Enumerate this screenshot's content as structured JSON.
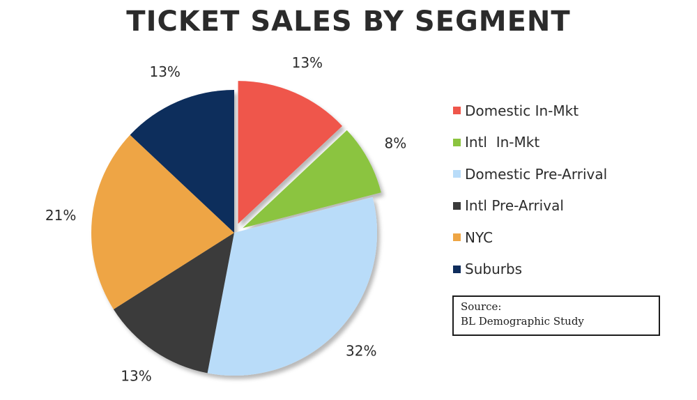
{
  "chart_data": {
    "type": "pie",
    "title": "TICKET SALES BY SEGMENT",
    "slices": [
      {
        "label": "Domestic In-Mkt",
        "value": 13,
        "display": "13%",
        "color": "#ef564b",
        "exploded": true
      },
      {
        "label": "Intl  In-Mkt",
        "value": 8,
        "display": "8%",
        "color": "#8bc43f",
        "exploded": true
      },
      {
        "label": "Domestic Pre-Arrival",
        "value": 32,
        "display": "32%",
        "color": "#b9dcf9",
        "exploded": false
      },
      {
        "label": "Intl Pre-Arrival",
        "value": 13,
        "display": "13%",
        "color": "#3a3a3a",
        "exploded": false
      },
      {
        "label": "NYC",
        "value": 21,
        "display": "21%",
        "color": "#eea544",
        "exploded": false
      },
      {
        "label": "Suburbs",
        "value": 13,
        "display": "13%",
        "color": "#0f2d5c",
        "exploded": false
      }
    ],
    "legend_position": "right"
  },
  "source": {
    "label": "Source:",
    "text": "BL Demographic Study"
  }
}
